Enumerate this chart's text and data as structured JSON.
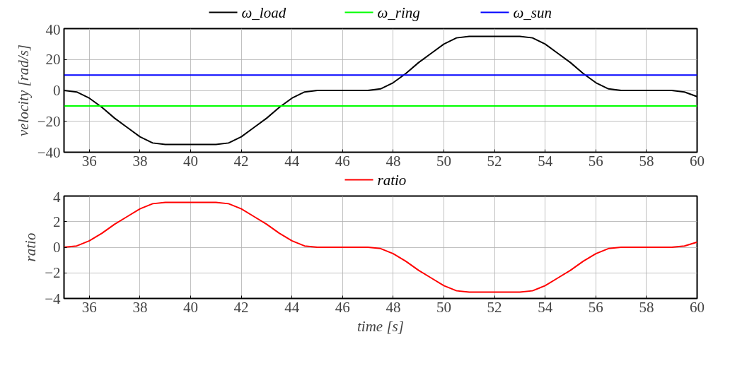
{
  "chart_data": [
    {
      "type": "line",
      "ylabel": "velocity [rad/s]",
      "x": [
        35,
        35.5,
        36,
        36.5,
        37,
        37.5,
        38,
        38.5,
        39,
        39.5,
        40,
        40.5,
        41,
        41.5,
        42,
        42.5,
        43,
        43.5,
        44,
        44.5,
        45,
        45.5,
        46,
        46.5,
        47,
        47.5,
        48,
        48.5,
        49,
        49.5,
        50,
        50.5,
        51,
        51.5,
        52,
        52.5,
        53,
        53.5,
        54,
        54.5,
        55,
        55.5,
        56,
        56.5,
        57,
        57.5,
        58,
        58.5,
        59,
        59.5,
        60
      ],
      "series": [
        {
          "name": "ω_load",
          "color": "#000000",
          "values": [
            0,
            -1,
            -5,
            -11,
            -18,
            -24,
            -30,
            -34,
            -35,
            -35,
            -35,
            -35,
            -35,
            -34,
            -30,
            -24,
            -18,
            -11,
            -5,
            -1,
            0,
            0,
            0,
            0,
            0,
            1,
            5,
            11,
            18,
            24,
            30,
            34,
            35,
            35,
            35,
            35,
            35,
            34,
            30,
            24,
            18,
            11,
            5,
            1,
            0,
            0,
            0,
            0,
            0,
            -1,
            -4
          ]
        },
        {
          "name": "ω_ring",
          "color": "#00ff00",
          "values": [
            -10,
            -10,
            -10,
            -10,
            -10,
            -10,
            -10,
            -10,
            -10,
            -10,
            -10,
            -10,
            -10,
            -10,
            -10,
            -10,
            -10,
            -10,
            -10,
            -10,
            -10,
            -10,
            -10,
            -10,
            -10,
            -10,
            -10,
            -10,
            -10,
            -10,
            -10,
            -10,
            -10,
            -10,
            -10,
            -10,
            -10,
            -10,
            -10,
            -10,
            -10,
            -10,
            -10,
            -10,
            -10,
            -10,
            -10,
            -10,
            -10,
            -10,
            -10
          ]
        },
        {
          "name": "ω_sun",
          "color": "#0000ff",
          "values": [
            10,
            10,
            10,
            10,
            10,
            10,
            10,
            10,
            10,
            10,
            10,
            10,
            10,
            10,
            10,
            10,
            10,
            10,
            10,
            10,
            10,
            10,
            10,
            10,
            10,
            10,
            10,
            10,
            10,
            10,
            10,
            10,
            10,
            10,
            10,
            10,
            10,
            10,
            10,
            10,
            10,
            10,
            10,
            10,
            10,
            10,
            10,
            10,
            10,
            10,
            10
          ]
        }
      ],
      "xlim": [
        35,
        60
      ],
      "xticks": [
        36,
        38,
        40,
        42,
        44,
        46,
        48,
        50,
        52,
        54,
        56,
        58,
        60
      ],
      "ylim": [
        -40,
        40
      ],
      "yticks": [
        -40,
        -20,
        0,
        20,
        40
      ],
      "grid": true,
      "legend": "top",
      "marker": "none",
      "line_style": "solid"
    },
    {
      "type": "line",
      "xlabel": "time [s]",
      "ylabel": "ratio",
      "x": [
        35,
        35.5,
        36,
        36.5,
        37,
        37.5,
        38,
        38.5,
        39,
        39.5,
        40,
        40.5,
        41,
        41.5,
        42,
        42.5,
        43,
        43.5,
        44,
        44.5,
        45,
        45.5,
        46,
        46.5,
        47,
        47.5,
        48,
        48.5,
        49,
        49.5,
        50,
        50.5,
        51,
        51.5,
        52,
        52.5,
        53,
        53.5,
        54,
        54.5,
        55,
        55.5,
        56,
        56.5,
        57,
        57.5,
        58,
        58.5,
        59,
        59.5,
        60
      ],
      "series": [
        {
          "name": "ratio",
          "color": "#ff0000",
          "values": [
            0,
            0.1,
            0.5,
            1.1,
            1.8,
            2.4,
            3,
            3.4,
            3.5,
            3.5,
            3.5,
            3.5,
            3.5,
            3.4,
            3,
            2.4,
            1.8,
            1.1,
            0.5,
            0.1,
            0,
            0,
            0,
            0,
            0,
            -0.1,
            -0.5,
            -1.1,
            -1.8,
            -2.4,
            -3,
            -3.4,
            -3.5,
            -3.5,
            -3.5,
            -3.5,
            -3.5,
            -3.4,
            -3,
            -2.4,
            -1.8,
            -1.1,
            -0.5,
            -0.1,
            0,
            0,
            0,
            0,
            0,
            0.1,
            0.4
          ]
        }
      ],
      "xlim": [
        35,
        60
      ],
      "xticks": [
        36,
        38,
        40,
        42,
        44,
        46,
        48,
        50,
        52,
        54,
        56,
        58,
        60
      ],
      "ylim": [
        -4,
        4
      ],
      "yticks": [
        -4,
        -2,
        0,
        2,
        4
      ],
      "grid": true,
      "legend": "top",
      "marker": "none",
      "line_style": "solid"
    }
  ]
}
